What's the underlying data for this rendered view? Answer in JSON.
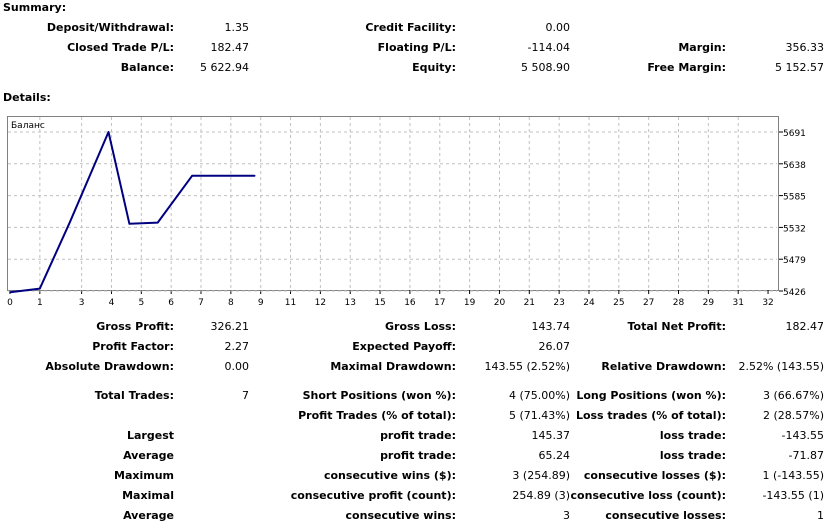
{
  "summary": {
    "title": "Summary:",
    "rows": [
      [
        "Deposit/Withdrawal:",
        "1.35",
        "Credit Facility:",
        "0.00",
        "",
        ""
      ],
      [
        "Closed Trade P/L:",
        "182.47",
        "Floating P/L:",
        "-114.04",
        "Margin:",
        "356.33"
      ],
      [
        "Balance:",
        "5 622.94",
        "Equity:",
        "5 508.90",
        "Free Margin:",
        "5 152.57"
      ]
    ]
  },
  "details": {
    "title": "Details:"
  },
  "chart_data": {
    "type": "line",
    "title": "Баланс",
    "x": [
      0,
      1,
      2,
      3,
      4,
      5,
      6,
      7,
      8
    ],
    "x_pos": [
      0,
      1,
      2,
      3.3,
      4.0,
      4.95,
      6.1,
      7.3,
      8.2
    ],
    "values": [
      5424,
      5430,
      5540,
      5691,
      5538,
      5540,
      5618,
      5618,
      5618
    ],
    "series": [
      {
        "values": [
          5424,
          5430,
          5540,
          5691,
          5538,
          5540,
          5618,
          5618,
          5618
        ],
        "color": "#000080"
      }
    ],
    "xticks": [
      "0",
      "1",
      "3",
      "4",
      "5",
      "6",
      "7",
      "8",
      "9",
      "11",
      "12",
      "13",
      "15",
      "16",
      "17",
      "19",
      "20",
      "21",
      "23",
      "24",
      "25",
      "27",
      "28",
      "29",
      "31",
      "32"
    ],
    "xtick_values": [
      0,
      1,
      2.4,
      3.4,
      4.4,
      5.4,
      6.4,
      7.4,
      8.4,
      9.4,
      10.4,
      11.4,
      12.4,
      13.4,
      14.4,
      15.4,
      16.4,
      17.4,
      18.4,
      19.4,
      20.4,
      21.4,
      22.4,
      23.4,
      24.4,
      25.4
    ],
    "yticks": [
      "5691",
      "5638",
      "5585",
      "5532",
      "5479",
      "5426"
    ],
    "ytick_values": [
      5691,
      5638,
      5585,
      5532,
      5479,
      5426
    ],
    "xlim": [
      0,
      25.7
    ],
    "ylim": [
      5420,
      5700
    ],
    "grid": true,
    "line_color": "#000080"
  },
  "stats": [
    {
      "row": 0,
      "cells": [
        "Gross Profit:",
        "326.21",
        "Gross Loss:",
        "143.74",
        "Total Net Profit:",
        "182.47"
      ]
    },
    {
      "row": 1,
      "cells": [
        "Profit Factor:",
        "2.27",
        "Expected Payoff:",
        "26.07",
        "",
        ""
      ]
    },
    {
      "row": 2,
      "cells": [
        "Absolute Drawdown:",
        "0.00",
        "Maximal Drawdown:",
        "143.55 (2.52%)",
        "Relative Drawdown:",
        "2.52% (143.55)"
      ]
    },
    {
      "row": 3,
      "cells": [
        "Total Trades:",
        "7",
        "Short Positions (won %):",
        "4 (75.00%)",
        "Long Positions (won %):",
        "3 (66.67%)"
      ]
    },
    {
      "row": 4,
      "cells": [
        "",
        "",
        "Profit Trades (% of total):",
        "5 (71.43%)",
        "Loss trades (% of total):",
        "2 (28.57%)"
      ]
    },
    {
      "row": 5,
      "cells": [
        "Largest",
        "",
        "profit trade:",
        "145.37",
        "loss trade:",
        "-143.55"
      ]
    },
    {
      "row": 6,
      "cells": [
        "Average",
        "",
        "profit trade:",
        "65.24",
        "loss trade:",
        "-71.87"
      ]
    },
    {
      "row": 7,
      "cells": [
        "Maximum",
        "",
        "consecutive wins ($):",
        "3 (254.89)",
        "consecutive losses ($):",
        "1 (-143.55)"
      ]
    },
    {
      "row": 8,
      "cells": [
        "Maximal",
        "",
        "consecutive profit (count):",
        "254.89 (3)",
        "consecutive loss (count):",
        "-143.55 (1)"
      ]
    },
    {
      "row": 9,
      "cells": [
        "Average",
        "",
        "consecutive wins:",
        "3",
        "consecutive losses:",
        "1"
      ]
    }
  ]
}
